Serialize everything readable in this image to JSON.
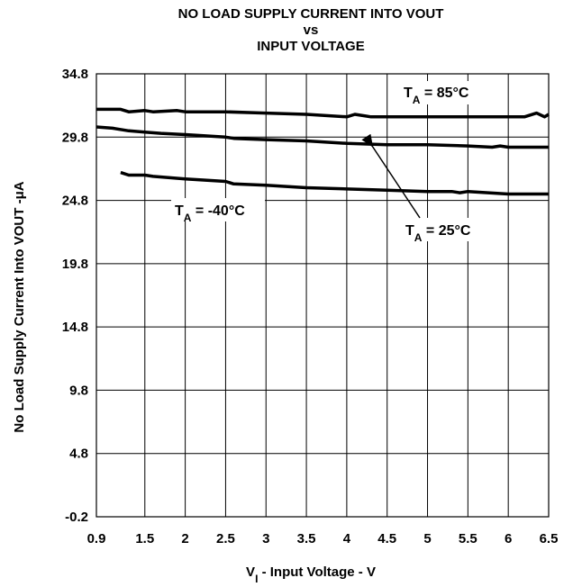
{
  "chart_data": {
    "type": "line",
    "title": [
      "NO LOAD SUPPLY CURRENT INTO VOUT",
      "vs",
      "INPUT VOLTAGE"
    ],
    "xlabel": {
      "main": "V",
      "sub": "I",
      "rest": " - Input Voltage - V"
    },
    "ylabel": "No Load Supply Current Into VOUT -μA",
    "xlim": [
      0.9,
      6.5
    ],
    "ylim": [
      -0.2,
      34.8
    ],
    "xticks": [
      0.9,
      1.5,
      2,
      2.5,
      3,
      3.5,
      4,
      4.5,
      5,
      5.5,
      6,
      6.5
    ],
    "xtick_labels": [
      "0.9",
      "1.5",
      "2",
      "2.5",
      "3",
      "3.5",
      "4",
      "4.5",
      "5",
      "5.5",
      "6",
      "6.5"
    ],
    "yticks": [
      -0.2,
      4.8,
      9.8,
      14.8,
      19.8,
      24.8,
      29.8,
      34.8
    ],
    "ytick_labels": [
      "-0.2",
      "4.8",
      "9.8",
      "14.8",
      "19.8",
      "24.8",
      "29.8",
      "34.8"
    ],
    "grid": true,
    "series": [
      {
        "name": "T_A = 85°C",
        "x": [
          0.9,
          1.2,
          1.3,
          1.5,
          1.6,
          1.9,
          2.0,
          2.5,
          3.0,
          3.5,
          4.0,
          4.1,
          4.3,
          4.5,
          5.0,
          5.5,
          6.0,
          6.2,
          6.35,
          6.45,
          6.5
        ],
        "y": [
          32.0,
          32.0,
          31.8,
          31.9,
          31.8,
          31.9,
          31.8,
          31.8,
          31.7,
          31.6,
          31.4,
          31.6,
          31.4,
          31.4,
          31.4,
          31.4,
          31.4,
          31.4,
          31.7,
          31.4,
          31.6
        ]
      },
      {
        "name": "T_A = 25°C",
        "x": [
          0.9,
          1.1,
          1.3,
          1.5,
          1.7,
          2.0,
          2.5,
          2.6,
          3.0,
          3.5,
          4.0,
          4.5,
          5.0,
          5.5,
          5.8,
          5.9,
          6.0,
          6.5
        ],
        "y": [
          30.6,
          30.5,
          30.3,
          30.2,
          30.1,
          30.0,
          29.8,
          29.7,
          29.6,
          29.5,
          29.3,
          29.2,
          29.2,
          29.1,
          29.0,
          29.1,
          29.0,
          29.0
        ]
      },
      {
        "name": "T_A = -40°C",
        "x": [
          1.2,
          1.3,
          1.5,
          1.6,
          2.0,
          2.5,
          2.6,
          3.0,
          3.5,
          4.0,
          4.5,
          5.0,
          5.3,
          5.4,
          5.5,
          6.0,
          6.5
        ],
        "y": [
          27.0,
          26.8,
          26.8,
          26.7,
          26.5,
          26.3,
          26.1,
          26.0,
          25.8,
          25.7,
          25.6,
          25.5,
          25.5,
          25.4,
          25.5,
          25.3,
          25.3
        ]
      }
    ],
    "annotations": [
      {
        "id": "t85",
        "main": "T",
        "sub": "A",
        "rest": " = 85°C"
      },
      {
        "id": "t25",
        "main": "T",
        "sub": "A",
        "rest": " = 25°C"
      },
      {
        "id": "tm40",
        "main": "T",
        "sub": "A",
        "rest": " = -40°C"
      }
    ]
  }
}
